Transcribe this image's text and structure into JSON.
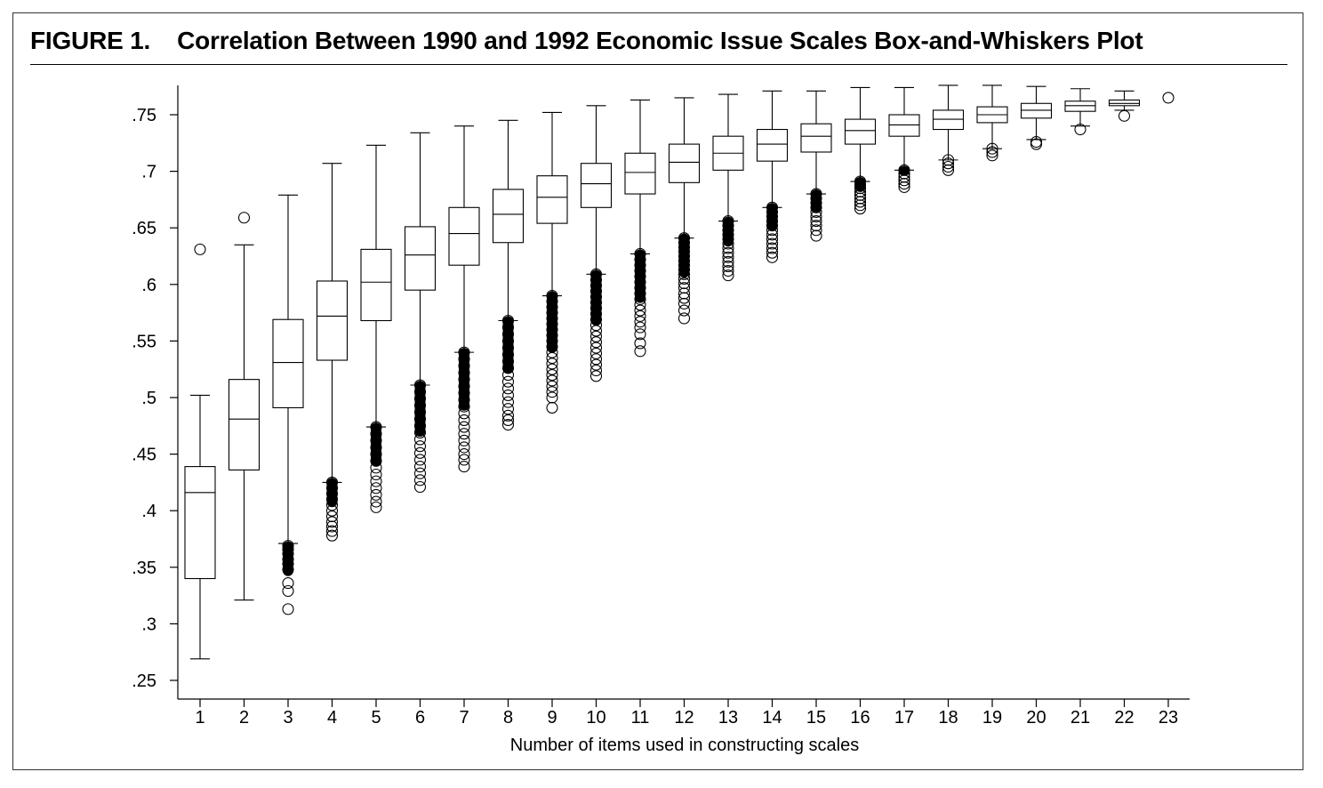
{
  "figure": {
    "label": "FIGURE 1.",
    "title": "Correlation Between 1990 and 1992 Economic Issue Scales Box-and-Whiskers Plot"
  },
  "colors": {
    "ink": "#000000",
    "background": "#ffffff"
  },
  "chart_data": {
    "type": "box",
    "title": "Correlation Between 1990 and 1992 Economic Issue Scales Box-and-Whiskers Plot",
    "xlabel": "Number of items used in constructing scales",
    "ylabel": "",
    "ylim": [
      0.24,
      0.78
    ],
    "yticks": [
      0.25,
      0.3,
      0.35,
      0.4,
      0.45,
      0.5,
      0.55,
      0.6,
      0.65,
      0.7,
      0.75
    ],
    "yticklabels": [
      ".25",
      ".3",
      ".35",
      ".4",
      ".45",
      ".5",
      ".55",
      ".6",
      ".65",
      ".7",
      ".75"
    ],
    "categories": [
      "1",
      "2",
      "3",
      "4",
      "5",
      "6",
      "7",
      "8",
      "9",
      "10",
      "11",
      "12",
      "13",
      "14",
      "15",
      "16",
      "17",
      "18",
      "19",
      "20",
      "21",
      "22",
      "23"
    ],
    "boxes": [
      {
        "n": 1,
        "whisker_low": 0.269,
        "q1": 0.34,
        "median": 0.416,
        "q3": 0.439,
        "whisker_high": 0.502,
        "outliers_low": [],
        "outliers_high": [
          0.631
        ]
      },
      {
        "n": 2,
        "whisker_low": 0.321,
        "q1": 0.436,
        "median": 0.481,
        "q3": 0.516,
        "whisker_high": 0.635,
        "outliers_low": [],
        "outliers_high": [
          0.659
        ]
      },
      {
        "n": 3,
        "whisker_low": 0.371,
        "q1": 0.491,
        "median": 0.531,
        "q3": 0.569,
        "whisker_high": 0.679,
        "outliers_low": [
          0.369,
          0.366,
          0.362,
          0.357,
          0.353,
          0.348,
          0.336,
          0.329,
          0.313
        ],
        "outliers_high": []
      },
      {
        "n": 4,
        "whisker_low": 0.425,
        "q1": 0.533,
        "median": 0.572,
        "q3": 0.603,
        "whisker_high": 0.707,
        "outliers_low": [
          0.425,
          0.42,
          0.415,
          0.41,
          0.405,
          0.4,
          0.395,
          0.39,
          0.386,
          0.382,
          0.378
        ],
        "outliers_high": []
      },
      {
        "n": 5,
        "whisker_low": 0.474,
        "q1": 0.568,
        "median": 0.602,
        "q3": 0.631,
        "whisker_high": 0.723,
        "outliers_low": [
          0.474,
          0.468,
          0.462,
          0.456,
          0.45,
          0.444,
          0.438,
          0.432,
          0.426,
          0.42,
          0.414,
          0.408,
          0.403
        ],
        "outliers_high": []
      },
      {
        "n": 6,
        "whisker_low": 0.511,
        "q1": 0.595,
        "median": 0.626,
        "q3": 0.651,
        "whisker_high": 0.734,
        "outliers_low": [
          0.511,
          0.505,
          0.499,
          0.493,
          0.487,
          0.481,
          0.475,
          0.469,
          0.463,
          0.457,
          0.451,
          0.445,
          0.439,
          0.433,
          0.427,
          0.421
        ],
        "outliers_high": []
      },
      {
        "n": 7,
        "whisker_low": 0.54,
        "q1": 0.617,
        "median": 0.645,
        "q3": 0.668,
        "whisker_high": 0.74,
        "outliers_low": [
          0.54,
          0.534,
          0.528,
          0.522,
          0.516,
          0.51,
          0.504,
          0.498,
          0.492,
          0.486,
          0.48,
          0.474,
          0.468,
          0.462,
          0.456,
          0.45,
          0.445,
          0.439
        ],
        "outliers_high": []
      },
      {
        "n": 8,
        "whisker_low": 0.568,
        "q1": 0.637,
        "median": 0.662,
        "q3": 0.684,
        "whisker_high": 0.745,
        "outliers_low": [
          0.568,
          0.562,
          0.556,
          0.55,
          0.544,
          0.538,
          0.532,
          0.526,
          0.52,
          0.514,
          0.508,
          0.502,
          0.496,
          0.49,
          0.484,
          0.48,
          0.476
        ],
        "outliers_high": []
      },
      {
        "n": 9,
        "whisker_low": 0.59,
        "q1": 0.654,
        "median": 0.677,
        "q3": 0.696,
        "whisker_high": 0.752,
        "outliers_low": [
          0.59,
          0.585,
          0.58,
          0.575,
          0.57,
          0.565,
          0.56,
          0.555,
          0.55,
          0.545,
          0.54,
          0.535,
          0.53,
          0.525,
          0.52,
          0.515,
          0.51,
          0.505,
          0.5,
          0.491
        ],
        "outliers_high": []
      },
      {
        "n": 10,
        "whisker_low": 0.609,
        "q1": 0.668,
        "median": 0.689,
        "q3": 0.707,
        "whisker_high": 0.758,
        "outliers_low": [
          0.609,
          0.604,
          0.599,
          0.594,
          0.589,
          0.584,
          0.579,
          0.574,
          0.569,
          0.564,
          0.559,
          0.554,
          0.549,
          0.544,
          0.539,
          0.534,
          0.529,
          0.524,
          0.519
        ],
        "outliers_high": []
      },
      {
        "n": 11,
        "whisker_low": 0.627,
        "q1": 0.68,
        "median": 0.699,
        "q3": 0.716,
        "whisker_high": 0.763,
        "outliers_low": [
          0.627,
          0.622,
          0.617,
          0.612,
          0.607,
          0.602,
          0.597,
          0.592,
          0.587,
          0.582,
          0.577,
          0.572,
          0.567,
          0.562,
          0.556,
          0.548,
          0.541
        ],
        "outliers_high": []
      },
      {
        "n": 12,
        "whisker_low": 0.641,
        "q1": 0.69,
        "median": 0.708,
        "q3": 0.724,
        "whisker_high": 0.765,
        "outliers_low": [
          0.641,
          0.637,
          0.633,
          0.629,
          0.625,
          0.621,
          0.617,
          0.613,
          0.609,
          0.605,
          0.601,
          0.597,
          0.592,
          0.588,
          0.583,
          0.577,
          0.57
        ],
        "outliers_high": []
      },
      {
        "n": 13,
        "whisker_low": 0.656,
        "q1": 0.701,
        "median": 0.716,
        "q3": 0.731,
        "whisker_high": 0.768,
        "outliers_low": [
          0.656,
          0.652,
          0.648,
          0.644,
          0.64,
          0.636,
          0.632,
          0.628,
          0.624,
          0.62,
          0.616,
          0.612,
          0.608
        ],
        "outliers_high": []
      },
      {
        "n": 14,
        "whisker_low": 0.668,
        "q1": 0.709,
        "median": 0.724,
        "q3": 0.737,
        "whisker_high": 0.771,
        "outliers_low": [
          0.668,
          0.664,
          0.66,
          0.656,
          0.652,
          0.648,
          0.644,
          0.64,
          0.636,
          0.632,
          0.628,
          0.624
        ],
        "outliers_high": []
      },
      {
        "n": 15,
        "whisker_low": 0.68,
        "q1": 0.717,
        "median": 0.731,
        "q3": 0.742,
        "whisker_high": 0.771,
        "outliers_low": [
          0.68,
          0.676,
          0.672,
          0.668,
          0.664,
          0.66,
          0.656,
          0.652,
          0.648,
          0.643
        ],
        "outliers_high": []
      },
      {
        "n": 16,
        "whisker_low": 0.691,
        "q1": 0.724,
        "median": 0.736,
        "q3": 0.746,
        "whisker_high": 0.774,
        "outliers_low": [
          0.691,
          0.688,
          0.685,
          0.682,
          0.679,
          0.676,
          0.673,
          0.67,
          0.667
        ],
        "outliers_high": []
      },
      {
        "n": 17,
        "whisker_low": 0.701,
        "q1": 0.731,
        "median": 0.741,
        "q3": 0.75,
        "whisker_high": 0.774,
        "outliers_low": [
          0.701,
          0.698,
          0.695,
          0.692,
          0.689,
          0.686
        ],
        "outliers_high": []
      },
      {
        "n": 18,
        "whisker_low": 0.71,
        "q1": 0.737,
        "median": 0.746,
        "q3": 0.754,
        "whisker_high": 0.776,
        "outliers_low": [
          0.71,
          0.707,
          0.704,
          0.701
        ],
        "outliers_high": []
      },
      {
        "n": 19,
        "whisker_low": 0.72,
        "q1": 0.743,
        "median": 0.75,
        "q3": 0.757,
        "whisker_high": 0.776,
        "outliers_low": [
          0.72,
          0.717,
          0.714
        ],
        "outliers_high": []
      },
      {
        "n": 20,
        "whisker_low": 0.728,
        "q1": 0.747,
        "median": 0.754,
        "q3": 0.76,
        "whisker_high": 0.775,
        "outliers_low": [
          0.726,
          0.724
        ],
        "outliers_high": []
      },
      {
        "n": 21,
        "whisker_low": 0.74,
        "q1": 0.753,
        "median": 0.758,
        "q3": 0.762,
        "whisker_high": 0.773,
        "outliers_low": [
          0.737
        ],
        "outliers_high": []
      },
      {
        "n": 22,
        "whisker_low": 0.754,
        "q1": 0.758,
        "median": 0.76,
        "q3": 0.763,
        "whisker_high": 0.771,
        "outliers_low": [
          0.749
        ],
        "outliers_high": []
      },
      {
        "n": 23,
        "whisker_low": null,
        "q1": null,
        "median": 0.765,
        "q3": null,
        "whisker_high": null,
        "outliers_low": [],
        "outliers_high": [],
        "single_point": 0.765
      }
    ]
  }
}
